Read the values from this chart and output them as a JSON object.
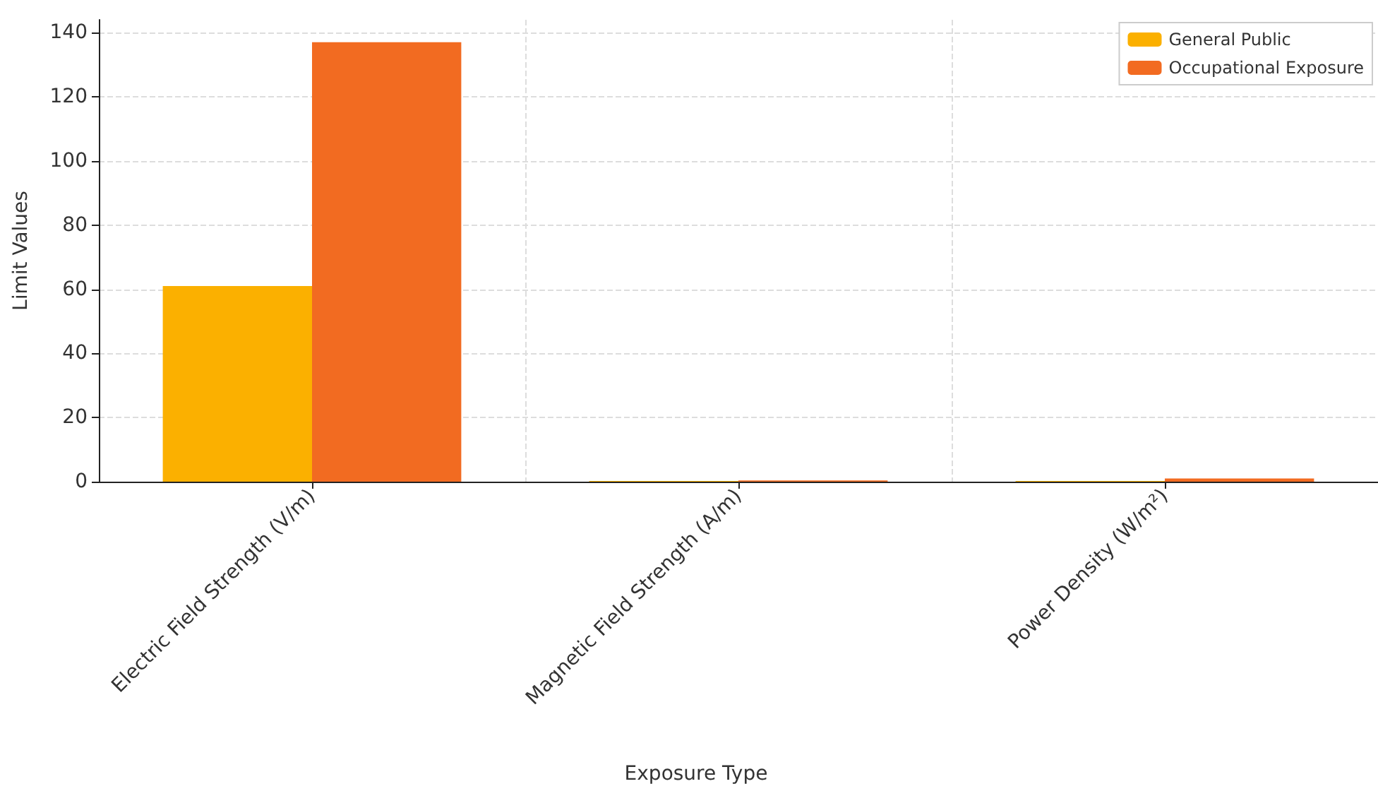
{
  "chart_data": {
    "type": "bar",
    "xlabel": "Exposure Type",
    "ylabel": "Limit Values",
    "categories": [
      "Electric Field Strength (V/m)",
      "Magnetic Field Strength (A/m)",
      "Power Density (W/m²)"
    ],
    "series": [
      {
        "name": "General Public",
        "color": "#fbb000",
        "values": [
          61,
          0.2,
          0.2
        ]
      },
      {
        "name": "Occupational Exposure",
        "color": "#f26b21",
        "values": [
          137,
          0.4,
          1
        ]
      }
    ],
    "ylim": [
      0,
      144
    ],
    "yticks": [
      0,
      20,
      40,
      60,
      80,
      100,
      120,
      140
    ],
    "grid": true,
    "legend": "top right"
  }
}
